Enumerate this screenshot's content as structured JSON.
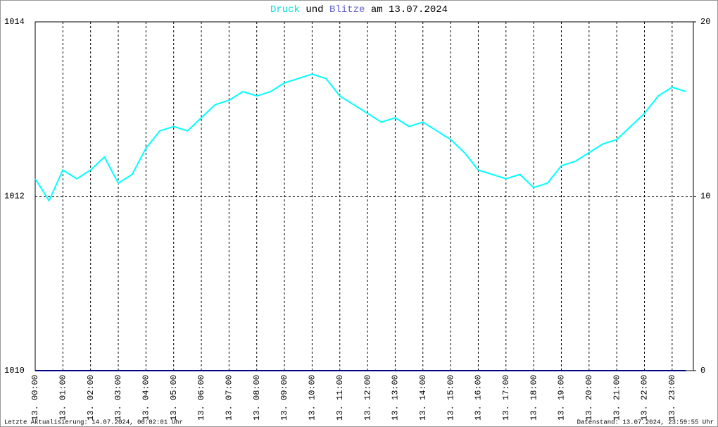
{
  "chart_data": {
    "type": "line",
    "title": [
      "Druck",
      "und",
      "Blitze",
      "am 13.07.2024"
    ],
    "x": [
      0,
      30,
      60,
      90,
      120,
      150,
      180,
      210,
      240,
      270,
      300,
      330,
      360,
      390,
      420,
      450,
      480,
      510,
      540,
      570,
      600,
      630,
      660,
      690,
      720,
      750,
      780,
      810,
      840,
      870,
      900,
      930,
      960,
      990,
      1020,
      1050,
      1080,
      1110,
      1140,
      1170,
      1200,
      1230,
      1260,
      1290,
      1320,
      1350,
      1380,
      1410
    ],
    "series": [
      {
        "name": "Druck",
        "color": "#00ffff",
        "values": [
          1012.2,
          1011.95,
          1012.3,
          1012.2,
          1012.3,
          1012.45,
          1012.15,
          1012.25,
          1012.55,
          1012.75,
          1012.8,
          1012.75,
          1012.9,
          1013.05,
          1013.1,
          1013.2,
          1013.15,
          1013.2,
          1013.3,
          1013.35,
          1013.4,
          1013.35,
          1013.15,
          1013.05,
          1012.95,
          1012.85,
          1012.9,
          1012.8,
          1012.85,
          1012.75,
          1012.65,
          1012.5,
          1012.3,
          1012.25,
          1012.2,
          1012.25,
          1012.1,
          1012.15,
          1012.35,
          1012.4,
          1012.5,
          1012.6,
          1012.65,
          1012.8,
          1012.95,
          1013.15,
          1013.25,
          1013.2
        ]
      },
      {
        "name": "Blitze",
        "color": "#000080",
        "axis": "y2",
        "values": [
          0,
          0,
          0,
          0,
          0,
          0,
          0,
          0,
          0,
          0,
          0,
          0,
          0,
          0,
          0,
          0,
          0,
          0,
          0,
          0,
          0,
          0,
          0,
          0,
          0,
          0,
          0,
          0,
          0,
          0,
          0,
          0,
          0,
          0,
          0,
          0,
          0,
          0,
          0,
          0,
          0,
          0,
          0,
          0,
          0,
          0,
          0,
          0
        ]
      }
    ],
    "xlim": [
      0,
      1426
    ],
    "xticks": [
      {
        "value": 0,
        "label": "13. 00:00"
      },
      {
        "value": 60,
        "label": "13. 01:00"
      },
      {
        "value": 120,
        "label": "13. 02:00"
      },
      {
        "value": 180,
        "label": "13. 03:00"
      },
      {
        "value": 240,
        "label": "13. 04:00"
      },
      {
        "value": 300,
        "label": "13. 05:00"
      },
      {
        "value": 360,
        "label": "13. 06:00"
      },
      {
        "value": 420,
        "label": "13. 07:00"
      },
      {
        "value": 480,
        "label": "13. 08:00"
      },
      {
        "value": 540,
        "label": "13. 09:00"
      },
      {
        "value": 600,
        "label": "13. 10:00"
      },
      {
        "value": 660,
        "label": "13. 11:00"
      },
      {
        "value": 720,
        "label": "13. 12:00"
      },
      {
        "value": 780,
        "label": "13. 13:00"
      },
      {
        "value": 840,
        "label": "13. 14:00"
      },
      {
        "value": 900,
        "label": "13. 15:00"
      },
      {
        "value": 960,
        "label": "13. 16:00"
      },
      {
        "value": 1020,
        "label": "13. 17:00"
      },
      {
        "value": 1080,
        "label": "13. 18:00"
      },
      {
        "value": 1140,
        "label": "13. 19:00"
      },
      {
        "value": 1200,
        "label": "13. 20:00"
      },
      {
        "value": 1260,
        "label": "13. 21:00"
      },
      {
        "value": 1320,
        "label": "13. 22:00"
      },
      {
        "value": 1380,
        "label": "13. 23:00"
      }
    ],
    "ylim": [
      1010,
      1014
    ],
    "yticks": [
      1010,
      1012,
      1014
    ],
    "y2lim": [
      0,
      20
    ],
    "y2ticks": [
      0,
      10,
      20
    ],
    "grid": true,
    "footer_left": "Letzte Aktualisierung: 14.07.2024, 00:02:01 Uhr",
    "footer_right": "Datenstand: 13.07.2024, 23:59:55 Uhr"
  }
}
